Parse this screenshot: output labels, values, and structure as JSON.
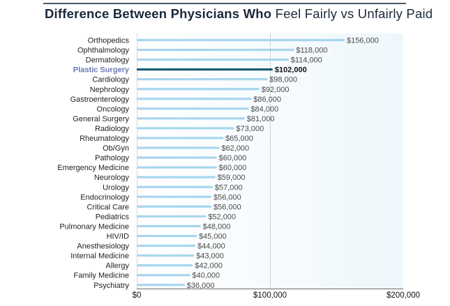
{
  "title": {
    "bold": "Difference Between Physicians Who",
    "regular": "Feel Fairly vs Unfairly Paid"
  },
  "colors": {
    "rule": "#4a5a70",
    "title": "#1b2a3a",
    "plot_background": "#eef7fc",
    "bar": "#a7d6ee",
    "highlight_bar": "#1a5d72",
    "highlight_label": "#6a78b4",
    "value_label": "#4a4a4a",
    "category_label": "#222222",
    "gridline": "#9a9a9a"
  },
  "chart_data": {
    "type": "bar",
    "orientation": "horizontal",
    "categories": [
      "Orthopedics",
      "Ophthalmology",
      "Dermatology",
      "Plastic Surgery",
      "Cardiology",
      "Nephrology",
      "Gastroenterology",
      "Oncology",
      "General Surgery",
      "Radiology",
      "Rheumatology",
      "Ob/Gyn",
      "Pathology",
      "Emergency Medicine",
      "Neurology",
      "Urology",
      "Endocrinology",
      "Critical Care",
      "Pediatrics",
      "Pulmonary Medicine",
      "HIV/ID",
      "Anesthesiology",
      "Internal Medicine",
      "Allergy",
      "Family Medicine",
      "Psychiatry"
    ],
    "values": [
      156000,
      118000,
      114000,
      102000,
      98000,
      92000,
      86000,
      84000,
      81000,
      73000,
      65000,
      62000,
      60000,
      60000,
      59000,
      57000,
      56000,
      56000,
      52000,
      48000,
      45000,
      44000,
      43000,
      42000,
      40000,
      36000
    ],
    "value_labels": [
      "$156,000",
      "$118,000",
      "$114,000",
      "$102,000",
      "$98,000",
      "$92,000",
      "$86,000",
      "$84,000",
      "$81,000",
      "$73,000",
      "$65,000",
      "$62,000",
      "$60,000",
      "$60,000",
      "$59,000",
      "$57,000",
      "$56,000",
      "$56,000",
      "$52,000",
      "$48,000",
      "$45,000",
      "$44,000",
      "$43,000",
      "$42,000",
      "$40,000",
      "$36,000"
    ],
    "highlight": "Plastic Surgery",
    "xlim": [
      0,
      200000
    ],
    "x_ticks": [
      0,
      100000,
      200000
    ],
    "x_tick_labels": [
      "$0",
      "$100,000",
      "$200,000"
    ],
    "gridlines": [
      100000
    ]
  }
}
